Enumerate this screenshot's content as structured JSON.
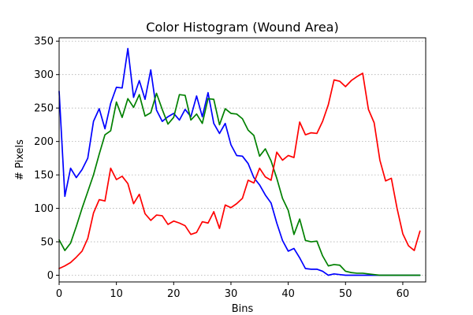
{
  "chart_data": {
    "type": "line",
    "title": "Color Histogram (Wound Area)",
    "xlabel": "Bins",
    "ylabel": "# Pixels",
    "xlim": [
      0,
      64
    ],
    "ylim": [
      -10,
      355
    ],
    "xticks": [
      0,
      10,
      20,
      30,
      40,
      50,
      60
    ],
    "yticks": [
      0,
      50,
      100,
      150,
      200,
      250,
      300,
      350
    ],
    "grid": "horizontal dotted",
    "legend": "none",
    "series": [
      {
        "color": "#0000ff",
        "values": [
          275,
          118,
          160,
          146,
          158,
          175,
          230,
          249,
          219,
          257,
          281,
          280,
          339,
          266,
          291,
          263,
          307,
          247,
          230,
          237,
          242,
          232,
          248,
          237,
          268,
          237,
          273,
          227,
          212,
          227,
          195,
          179,
          178,
          167,
          146,
          135,
          120,
          108,
          78,
          52,
          36,
          40,
          26,
          10,
          9,
          9,
          6,
          0,
          2,
          1,
          0,
          0,
          0,
          0,
          0,
          0,
          0,
          0,
          0,
          0,
          0,
          0,
          0,
          0
        ]
      },
      {
        "color": "#008000",
        "values": [
          53,
          37,
          48,
          73,
          100,
          125,
          150,
          181,
          210,
          216,
          259,
          236,
          264,
          251,
          270,
          238,
          243,
          272,
          248,
          226,
          236,
          270,
          269,
          232,
          241,
          227,
          264,
          263,
          225,
          249,
          242,
          241,
          234,
          217,
          209,
          178,
          189,
          171,
          145,
          115,
          97,
          61,
          84,
          52,
          50,
          51,
          29,
          14,
          16,
          15,
          6,
          4,
          3,
          3,
          2,
          1,
          0,
          0,
          0,
          0,
          0,
          0,
          0,
          0
        ]
      },
      {
        "color": "#ff0000",
        "values": [
          10,
          14,
          19,
          27,
          36,
          55,
          93,
          113,
          111,
          160,
          143,
          148,
          137,
          107,
          121,
          92,
          82,
          90,
          89,
          76,
          81,
          78,
          74,
          61,
          64,
          80,
          78,
          95,
          70,
          105,
          101,
          107,
          115,
          142,
          138,
          160,
          147,
          142,
          184,
          172,
          179,
          176,
          229,
          210,
          213,
          212,
          230,
          255,
          292,
          290,
          282,
          291,
          297,
          302,
          248,
          228,
          172,
          141,
          145,
          100,
          62,
          44,
          37,
          66
        ]
      }
    ]
  }
}
